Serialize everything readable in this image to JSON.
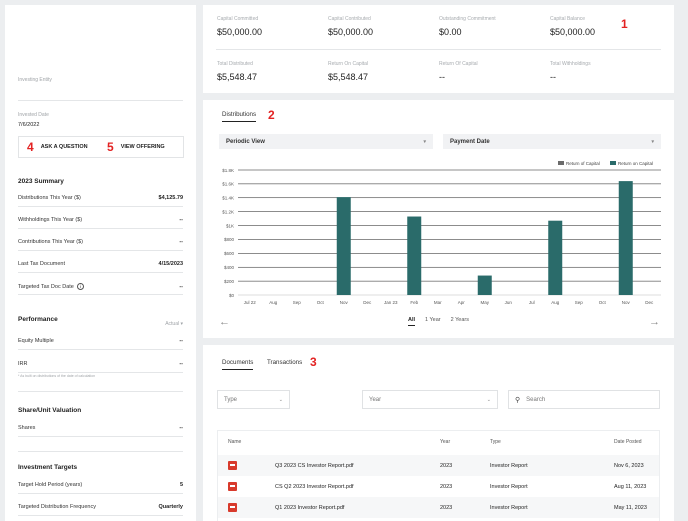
{
  "sidebar": {
    "investing_entity_label": "Investing Entity",
    "invested_date_label": "Invested Date",
    "invested_date_value": "7/6/2022",
    "ask_question": "ASK A QUESTION",
    "view_offering": "VIEW OFFERING",
    "summary_title": "2023 Summary",
    "summary_rows": [
      {
        "label": "Distributions This Year ($)",
        "value": "$4,125.79"
      },
      {
        "label": "Withholdings This Year ($)",
        "value": "--"
      },
      {
        "label": "Contributions This Year ($)",
        "value": "--"
      },
      {
        "label": "Last Tax Document",
        "value": "4/15/2023"
      },
      {
        "label": "Targeted Tax Doc Date",
        "value": "--"
      }
    ],
    "performance_title": "Performance",
    "performance_actual": "Actual",
    "performance_rows": [
      {
        "label": "Equity Multiple",
        "value": "--"
      },
      {
        "label": "IRR",
        "value": "--"
      }
    ],
    "performance_note": "* As built on distributions of the date of calculation",
    "valuation_title": "Share/Unit Valuation",
    "valuation_rows": [
      {
        "label": "Shares",
        "value": "--"
      }
    ],
    "targets_title": "Investment Targets",
    "targets_rows": [
      {
        "label": "Target Hold Period (years)",
        "value": "5"
      },
      {
        "label": "Targeted Distribution Frequency",
        "value": "Quarterly"
      }
    ]
  },
  "stats": [
    {
      "label": "Capital Committed",
      "value": "$50,000.00"
    },
    {
      "label": "Capital Contributed",
      "value": "$50,000.00"
    },
    {
      "label": "Outstanding Commitment",
      "value": "$0.00"
    },
    {
      "label": "Capital Balance",
      "value": "$50,000.00"
    },
    {
      "label": "Total Distributed",
      "value": "$5,548.47"
    },
    {
      "label": "Return On Capital",
      "value": "$5,548.47"
    },
    {
      "label": "Return Of Capital",
      "value": "--"
    },
    {
      "label": "Total Withholdings",
      "value": "--"
    }
  ],
  "annotations": [
    "1",
    "2",
    "3",
    "4",
    "5"
  ],
  "distributions": {
    "tab": "Distributions",
    "view_select": "Periodic View",
    "date_select": "Payment Date",
    "ranges": [
      "All",
      "1 Year",
      "2 Years"
    ],
    "prev_icon": "arrow-left-icon",
    "next_icon": "arrow-right-icon"
  },
  "chart_data": {
    "type": "bar",
    "categories": [
      "Jul 22",
      "Aug",
      "Sep",
      "Oct",
      "Nov",
      "Dec",
      "Jan 23",
      "Feb",
      "Mar",
      "Apr",
      "May",
      "Jun",
      "Jul",
      "Aug",
      "Sep",
      "Oct",
      "Nov",
      "Dec"
    ],
    "series": [
      {
        "name": "Return of Capital",
        "color": "#6b6b6b",
        "values": [
          0,
          0,
          0,
          0,
          0,
          0,
          0,
          0,
          0,
          0,
          0,
          0,
          0,
          0,
          0,
          0,
          0,
          0
        ]
      },
      {
        "name": "Return on Capital",
        "color": "#2a6b6a",
        "values": [
          0,
          0,
          0,
          0,
          1410,
          0,
          0,
          1130,
          0,
          0,
          280,
          0,
          0,
          1070,
          0,
          0,
          1640,
          0
        ]
      }
    ],
    "yticks": [
      "$0",
      "$200",
      "$400",
      "$600",
      "$800",
      "$1K",
      "$1.2K",
      "$1.4K",
      "$1.6K",
      "$1.8K"
    ],
    "ylim": [
      0,
      1800
    ],
    "legend": "top-right",
    "grid": true
  },
  "documents": {
    "tabs": [
      "Documents",
      "Transactions"
    ],
    "type_placeholder": "Type",
    "year_placeholder": "Year",
    "search_placeholder": "Search",
    "columns": [
      "Name",
      "Year",
      "Type",
      "Date Posted"
    ],
    "rows": [
      {
        "name": "Q3 2023 CS Investor Report.pdf",
        "year": "2023",
        "type": "Investor Report",
        "date": "Nov 6, 2023"
      },
      {
        "name": "CS Q2 2023 Investor Report.pdf",
        "year": "2023",
        "type": "Investor Report",
        "date": "Aug 11, 2023"
      },
      {
        "name": "Q1 2023 Investor Report.pdf",
        "year": "2023",
        "type": "Investor Report",
        "date": "May 11, 2023"
      }
    ]
  }
}
